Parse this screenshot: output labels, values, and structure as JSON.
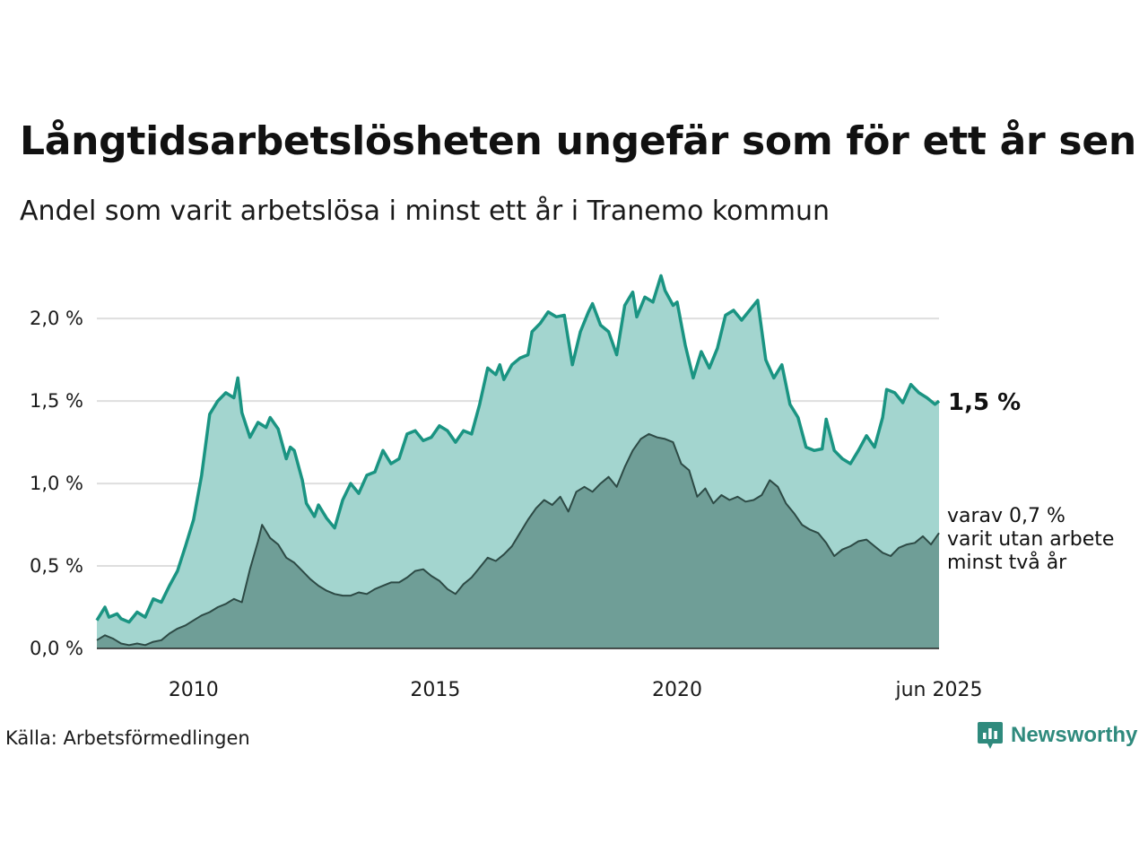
{
  "title": "Långtidsarbetslösheten ungefär som för ett år sen",
  "subtitle": "Andel som varit arbetslösa i minst ett år i Tranemo kommun",
  "source": "Källa: Arbetsförmedlingen",
  "brand": {
    "name": "Newsworthy",
    "icon": "newsworthy-logo-icon",
    "color": "#2f8a7d"
  },
  "colors": {
    "series1_line": "#1a9482",
    "series1_fill": "#a3d5cf",
    "series2_line": "#2d4a45",
    "series2_fill": "#6f9e97",
    "grid": "#dedede"
  },
  "chart_data": {
    "type": "area",
    "title": "Långtidsarbetslösheten ungefär som för ett år sen",
    "subtitle": "Andel som varit arbetslösa i minst ett år i Tranemo kommun",
    "xlabel": "",
    "ylabel": "",
    "x_range": [
      "2008-01",
      "2025-06"
    ],
    "ylim": [
      0,
      2.3
    ],
    "yticks": [
      0,
      0.5,
      1.0,
      1.5,
      2.0
    ],
    "ytick_labels": [
      "0,0 %",
      "0,5 %",
      "1,0 %",
      "1,5 %",
      "2,0 %"
    ],
    "xticks": [
      "2010-01",
      "2015-01",
      "2020-01",
      "2025-06"
    ],
    "xtick_labels": [
      "2010",
      "2015",
      "2020",
      "jun 2025"
    ],
    "grid": "horizontal",
    "legend": "none",
    "series": [
      {
        "name": "",
        "end_label": "1,5 %",
        "points": [
          [
            "2008-01",
            0.17
          ],
          [
            "2008-03",
            0.25
          ],
          [
            "2008-04",
            0.19
          ],
          [
            "2008-06",
            0.21
          ],
          [
            "2008-07",
            0.18
          ],
          [
            "2008-09",
            0.16
          ],
          [
            "2008-11",
            0.22
          ],
          [
            "2009-01",
            0.19
          ],
          [
            "2009-03",
            0.3
          ],
          [
            "2009-05",
            0.28
          ],
          [
            "2009-07",
            0.38
          ],
          [
            "2009-09",
            0.47
          ],
          [
            "2009-11",
            0.62
          ],
          [
            "2010-01",
            0.78
          ],
          [
            "2010-03",
            1.05
          ],
          [
            "2010-05",
            1.42
          ],
          [
            "2010-07",
            1.5
          ],
          [
            "2010-09",
            1.55
          ],
          [
            "2010-11",
            1.52
          ],
          [
            "2010-12",
            1.64
          ],
          [
            "2011-01",
            1.43
          ],
          [
            "2011-03",
            1.28
          ],
          [
            "2011-05",
            1.37
          ],
          [
            "2011-07",
            1.34
          ],
          [
            "2011-08",
            1.4
          ],
          [
            "2011-10",
            1.33
          ],
          [
            "2011-12",
            1.15
          ],
          [
            "2012-01",
            1.22
          ],
          [
            "2012-02",
            1.2
          ],
          [
            "2012-04",
            1.02
          ],
          [
            "2012-05",
            0.88
          ],
          [
            "2012-07",
            0.8
          ],
          [
            "2012-08",
            0.87
          ],
          [
            "2012-10",
            0.79
          ],
          [
            "2012-12",
            0.73
          ],
          [
            "2013-02",
            0.9
          ],
          [
            "2013-04",
            1.0
          ],
          [
            "2013-06",
            0.94
          ],
          [
            "2013-08",
            1.05
          ],
          [
            "2013-10",
            1.07
          ],
          [
            "2013-12",
            1.2
          ],
          [
            "2014-02",
            1.12
          ],
          [
            "2014-04",
            1.15
          ],
          [
            "2014-06",
            1.3
          ],
          [
            "2014-08",
            1.32
          ],
          [
            "2014-10",
            1.26
          ],
          [
            "2014-12",
            1.28
          ],
          [
            "2015-02",
            1.35
          ],
          [
            "2015-04",
            1.32
          ],
          [
            "2015-06",
            1.25
          ],
          [
            "2015-08",
            1.32
          ],
          [
            "2015-10",
            1.3
          ],
          [
            "2015-12",
            1.48
          ],
          [
            "2016-02",
            1.7
          ],
          [
            "2016-04",
            1.66
          ],
          [
            "2016-05",
            1.72
          ],
          [
            "2016-06",
            1.63
          ],
          [
            "2016-08",
            1.72
          ],
          [
            "2016-10",
            1.76
          ],
          [
            "2016-12",
            1.78
          ],
          [
            "2017-01",
            1.92
          ],
          [
            "2017-03",
            1.97
          ],
          [
            "2017-05",
            2.04
          ],
          [
            "2017-07",
            2.01
          ],
          [
            "2017-09",
            2.02
          ],
          [
            "2017-11",
            1.72
          ],
          [
            "2018-01",
            1.92
          ],
          [
            "2018-03",
            2.04
          ],
          [
            "2018-04",
            2.09
          ],
          [
            "2018-06",
            1.96
          ],
          [
            "2018-08",
            1.92
          ],
          [
            "2018-10",
            1.78
          ],
          [
            "2018-12",
            2.08
          ],
          [
            "2019-02",
            2.16
          ],
          [
            "2019-03",
            2.01
          ],
          [
            "2019-05",
            2.13
          ],
          [
            "2019-07",
            2.1
          ],
          [
            "2019-09",
            2.26
          ],
          [
            "2019-10",
            2.17
          ],
          [
            "2019-12",
            2.08
          ],
          [
            "2020-01",
            2.1
          ],
          [
            "2020-03",
            1.84
          ],
          [
            "2020-05",
            1.64
          ],
          [
            "2020-07",
            1.8
          ],
          [
            "2020-09",
            1.7
          ],
          [
            "2020-11",
            1.82
          ],
          [
            "2021-01",
            2.02
          ],
          [
            "2021-03",
            2.05
          ],
          [
            "2021-05",
            1.99
          ],
          [
            "2021-07",
            2.05
          ],
          [
            "2021-09",
            2.11
          ],
          [
            "2021-11",
            1.75
          ],
          [
            "2022-01",
            1.64
          ],
          [
            "2022-03",
            1.72
          ],
          [
            "2022-05",
            1.48
          ],
          [
            "2022-07",
            1.4
          ],
          [
            "2022-09",
            1.22
          ],
          [
            "2022-11",
            1.2
          ],
          [
            "2023-01",
            1.21
          ],
          [
            "2023-02",
            1.39
          ],
          [
            "2023-04",
            1.2
          ],
          [
            "2023-06",
            1.15
          ],
          [
            "2023-08",
            1.12
          ],
          [
            "2023-10",
            1.2
          ],
          [
            "2023-12",
            1.29
          ],
          [
            "2024-02",
            1.22
          ],
          [
            "2024-04",
            1.4
          ],
          [
            "2024-05",
            1.57
          ],
          [
            "2024-07",
            1.55
          ],
          [
            "2024-09",
            1.49
          ],
          [
            "2024-11",
            1.6
          ],
          [
            "2025-01",
            1.55
          ],
          [
            "2025-03",
            1.52
          ],
          [
            "2025-05",
            1.48
          ],
          [
            "2025-06",
            1.5
          ]
        ]
      },
      {
        "name": "varav 0,7 % varit utan arbete minst två år",
        "end_label_lines": [
          "varav 0,7 %",
          "varit utan arbete",
          "minst två år"
        ],
        "points": [
          [
            "2008-01",
            0.05
          ],
          [
            "2008-03",
            0.08
          ],
          [
            "2008-05",
            0.06
          ],
          [
            "2008-07",
            0.03
          ],
          [
            "2008-09",
            0.02
          ],
          [
            "2008-11",
            0.03
          ],
          [
            "2009-01",
            0.02
          ],
          [
            "2009-03",
            0.04
          ],
          [
            "2009-05",
            0.05
          ],
          [
            "2009-07",
            0.09
          ],
          [
            "2009-09",
            0.12
          ],
          [
            "2009-11",
            0.14
          ],
          [
            "2010-01",
            0.17
          ],
          [
            "2010-03",
            0.2
          ],
          [
            "2010-05",
            0.22
          ],
          [
            "2010-07",
            0.25
          ],
          [
            "2010-09",
            0.27
          ],
          [
            "2010-11",
            0.3
          ],
          [
            "2011-01",
            0.28
          ],
          [
            "2011-03",
            0.48
          ],
          [
            "2011-05",
            0.65
          ],
          [
            "2011-06",
            0.75
          ],
          [
            "2011-08",
            0.67
          ],
          [
            "2011-10",
            0.63
          ],
          [
            "2011-12",
            0.55
          ],
          [
            "2012-02",
            0.52
          ],
          [
            "2012-04",
            0.47
          ],
          [
            "2012-06",
            0.42
          ],
          [
            "2012-08",
            0.38
          ],
          [
            "2012-10",
            0.35
          ],
          [
            "2012-12",
            0.33
          ],
          [
            "2013-02",
            0.32
          ],
          [
            "2013-04",
            0.32
          ],
          [
            "2013-06",
            0.34
          ],
          [
            "2013-08",
            0.33
          ],
          [
            "2013-10",
            0.36
          ],
          [
            "2013-12",
            0.38
          ],
          [
            "2014-02",
            0.4
          ],
          [
            "2014-04",
            0.4
          ],
          [
            "2014-06",
            0.43
          ],
          [
            "2014-08",
            0.47
          ],
          [
            "2014-10",
            0.48
          ],
          [
            "2014-12",
            0.44
          ],
          [
            "2015-02",
            0.41
          ],
          [
            "2015-04",
            0.36
          ],
          [
            "2015-06",
            0.33
          ],
          [
            "2015-08",
            0.39
          ],
          [
            "2015-10",
            0.43
          ],
          [
            "2015-12",
            0.49
          ],
          [
            "2016-02",
            0.55
          ],
          [
            "2016-04",
            0.53
          ],
          [
            "2016-06",
            0.57
          ],
          [
            "2016-08",
            0.62
          ],
          [
            "2016-10",
            0.7
          ],
          [
            "2016-12",
            0.78
          ],
          [
            "2017-02",
            0.85
          ],
          [
            "2017-04",
            0.9
          ],
          [
            "2017-06",
            0.87
          ],
          [
            "2017-08",
            0.92
          ],
          [
            "2017-10",
            0.83
          ],
          [
            "2017-12",
            0.95
          ],
          [
            "2018-02",
            0.98
          ],
          [
            "2018-04",
            0.95
          ],
          [
            "2018-06",
            1.0
          ],
          [
            "2018-08",
            1.04
          ],
          [
            "2018-10",
            0.98
          ],
          [
            "2018-12",
            1.1
          ],
          [
            "2019-02",
            1.2
          ],
          [
            "2019-04",
            1.27
          ],
          [
            "2019-06",
            1.3
          ],
          [
            "2019-08",
            1.28
          ],
          [
            "2019-10",
            1.27
          ],
          [
            "2019-12",
            1.25
          ],
          [
            "2020-02",
            1.12
          ],
          [
            "2020-04",
            1.08
          ],
          [
            "2020-06",
            0.92
          ],
          [
            "2020-08",
            0.97
          ],
          [
            "2020-10",
            0.88
          ],
          [
            "2020-12",
            0.93
          ],
          [
            "2021-02",
            0.9
          ],
          [
            "2021-04",
            0.92
          ],
          [
            "2021-06",
            0.89
          ],
          [
            "2021-08",
            0.9
          ],
          [
            "2021-10",
            0.93
          ],
          [
            "2021-12",
            1.02
          ],
          [
            "2022-02",
            0.98
          ],
          [
            "2022-04",
            0.88
          ],
          [
            "2022-06",
            0.82
          ],
          [
            "2022-08",
            0.75
          ],
          [
            "2022-10",
            0.72
          ],
          [
            "2022-12",
            0.7
          ],
          [
            "2023-02",
            0.64
          ],
          [
            "2023-04",
            0.56
          ],
          [
            "2023-06",
            0.6
          ],
          [
            "2023-08",
            0.62
          ],
          [
            "2023-10",
            0.65
          ],
          [
            "2023-12",
            0.66
          ],
          [
            "2024-02",
            0.62
          ],
          [
            "2024-04",
            0.58
          ],
          [
            "2024-06",
            0.56
          ],
          [
            "2024-08",
            0.61
          ],
          [
            "2024-10",
            0.63
          ],
          [
            "2024-12",
            0.64
          ],
          [
            "2025-02",
            0.68
          ],
          [
            "2025-04",
            0.63
          ],
          [
            "2025-06",
            0.7
          ]
        ]
      }
    ]
  }
}
